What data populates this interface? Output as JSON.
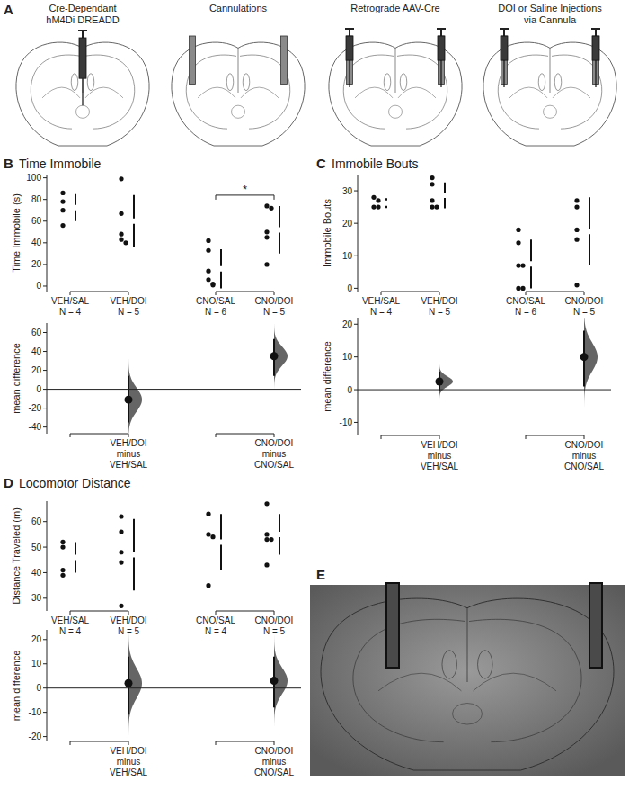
{
  "diagrams": [
    {
      "panel": "A",
      "steps": [
        {
          "label_lines": [
            "Cre-Dependant",
            "hM4Di DREADD"
          ]
        },
        {
          "label_lines": [
            "Cannulations"
          ]
        },
        {
          "label_lines": [
            "Retrograde AAV-Cre"
          ]
        },
        {
          "label_lines": [
            "DOI or Saline Injections",
            "via Cannula"
          ]
        }
      ]
    },
    {
      "panel": "E"
    }
  ],
  "chart_data": [
    {
      "type": "swarm",
      "panel": "B",
      "title": "Time Immobile",
      "y_label": "Time Immobile (s)",
      "ylim": [
        -5,
        103
      ],
      "yticks": [
        0,
        20,
        40,
        60,
        80,
        100
      ],
      "groups": [
        {
          "label": "VEH/SAL",
          "n_label": "N = 4",
          "values": [
            86,
            78,
            70,
            56
          ],
          "mean": 72.5,
          "sd": 12.5
        },
        {
          "label": "VEH/DOI",
          "n_label": "N = 5",
          "values": [
            99,
            67,
            48,
            43,
            40
          ],
          "mean": 60,
          "sd": 24
        },
        {
          "label": "CNO/SAL",
          "n_label": "N = 6",
          "values": [
            42,
            33,
            14,
            6,
            2,
            1
          ],
          "mean": 16,
          "sd": 18
        },
        {
          "label": "CNO/DOI",
          "n_label": "N = 5",
          "values": [
            74,
            72,
            50,
            45,
            20
          ],
          "mean": 52,
          "sd": 22
        }
      ],
      "significance": {
        "groups": [
          "CNO/SAL",
          "CNO/DOI"
        ],
        "label": "*"
      }
    },
    {
      "type": "estimation",
      "y_label": "mean difference",
      "ylim": [
        -47,
        70
      ],
      "yticks": [
        -40,
        -20,
        0,
        20,
        40,
        60
      ],
      "comparisons": [
        {
          "label_lines": [
            "VEH/DOI",
            "minus",
            "VEH/SAL"
          ],
          "value": -11,
          "ci": [
            -35,
            14
          ]
        },
        {
          "label_lines": [
            "CNO/DOI",
            "minus",
            "CNO/SAL"
          ],
          "value": 35,
          "ci": [
            14,
            53
          ]
        }
      ]
    },
    {
      "type": "swarm",
      "panel": "C",
      "title": "Immobile Bouts",
      "y_label": "Immobile Bouts",
      "ylim": [
        -1,
        35
      ],
      "yticks": [
        0,
        10,
        20,
        30
      ],
      "groups": [
        {
          "label": "VEH/SAL",
          "n_label": "N = 4",
          "values": [
            28,
            27,
            25,
            25
          ],
          "mean": 26.2,
          "sd": 1.5
        },
        {
          "label": "VEH/DOI",
          "n_label": "N = 5",
          "values": [
            34,
            32,
            27,
            25,
            25
          ],
          "mean": 28.6,
          "sd": 4
        },
        {
          "label": "CNO/SAL",
          "n_label": "N = 6",
          "values": [
            18,
            14,
            7,
            7,
            0,
            0
          ],
          "mean": 7.5,
          "sd": 7.5
        },
        {
          "label": "CNO/DOI",
          "n_label": "N = 5",
          "values": [
            27,
            25,
            18,
            15,
            1
          ],
          "mean": 17.5,
          "sd": 10.5
        }
      ]
    },
    {
      "type": "estimation",
      "y_label": "mean difference",
      "ylim": [
        -14,
        22
      ],
      "yticks": [
        -10,
        0,
        10,
        20
      ],
      "comparisons": [
        {
          "label_lines": [
            "VEH/DOI",
            "minus",
            "VEH/SAL"
          ],
          "value": 2.5,
          "ci": [
            -0.5,
            5.5
          ]
        },
        {
          "label_lines": [
            "CNO/DOI",
            "minus",
            "CNO/SAL"
          ],
          "value": 10,
          "ci": [
            1,
            18
          ]
        }
      ]
    },
    {
      "type": "swarm",
      "panel": "D",
      "title": "Locomotor Distance",
      "y_label": "Distance Traveled (m)",
      "ylim": [
        25,
        68
      ],
      "yticks": [
        30,
        40,
        50,
        60
      ],
      "groups": [
        {
          "label": "VEH/SAL",
          "n_label": "N = 4",
          "values": [
            52,
            50,
            41,
            39
          ],
          "mean": 46,
          "sd": 6
        },
        {
          "label": "VEH/DOI",
          "n_label": "N = 5",
          "values": [
            62,
            56,
            48,
            44,
            27
          ],
          "mean": 47,
          "sd": 14
        },
        {
          "label": "CNO/SAL",
          "n_label": "N = 4",
          "values": [
            63,
            55,
            54,
            35
          ],
          "mean": 52,
          "sd": 11
        },
        {
          "label": "CNO/DOI",
          "n_label": "N = 5",
          "values": [
            67,
            55,
            53,
            53,
            43
          ],
          "mean": 55,
          "sd": 8
        }
      ]
    },
    {
      "type": "estimation",
      "y_label": "mean difference",
      "ylim": [
        -22,
        24
      ],
      "yticks": [
        -20,
        -10,
        0,
        10,
        20
      ],
      "comparisons": [
        {
          "label_lines": [
            "VEH/DOI",
            "minus",
            "VEH/SAL"
          ],
          "value": 2,
          "ci": [
            -11,
            13
          ]
        },
        {
          "label_lines": [
            "CNO/DOI",
            "minus",
            "CNO/SAL"
          ],
          "value": 3,
          "ci": [
            -8,
            13
          ]
        }
      ]
    }
  ]
}
